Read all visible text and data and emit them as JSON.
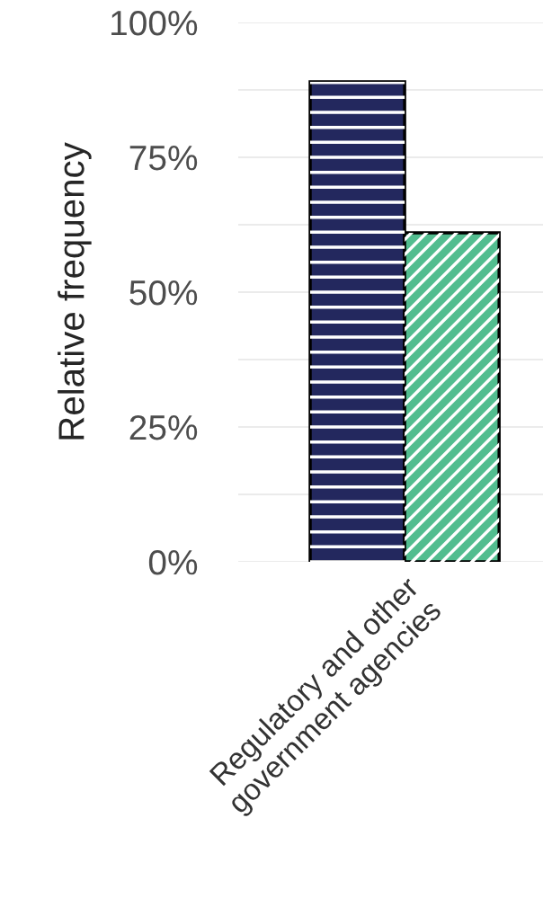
{
  "chart_data": {
    "type": "bar",
    "ylabel": "Relative frequency",
    "categories": [
      "Regulatory and other\ngovernment agencies"
    ],
    "series": [
      {
        "color": "#23285e",
        "values": [
          89
        ]
      },
      {
        "color": "#52bd8f",
        "values": [
          61
        ]
      }
    ],
    "ylim": [
      0,
      100
    ],
    "yticks": [
      {
        "value": 0,
        "label": "0%"
      },
      {
        "value": 12.5,
        "label": null
      },
      {
        "value": 25,
        "label": "25%"
      },
      {
        "value": 37.5,
        "label": null
      },
      {
        "value": 50,
        "label": "50%"
      },
      {
        "value": 62.5,
        "label": null
      },
      {
        "value": 75,
        "label": "75%"
      },
      {
        "value": 87.5,
        "label": null
      },
      {
        "value": 100,
        "label": "100%"
      }
    ],
    "grid": "y"
  }
}
